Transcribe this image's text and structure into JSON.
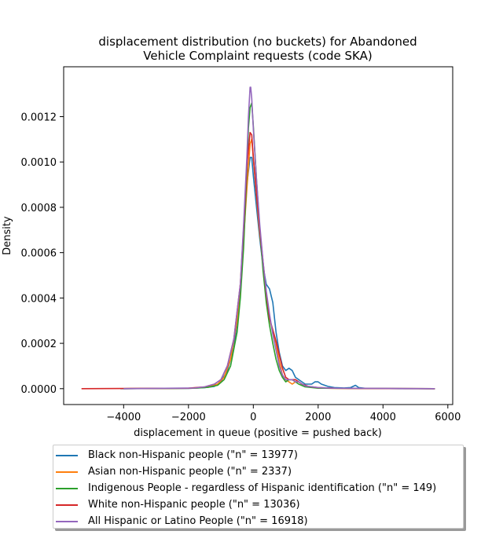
{
  "chart_data": {
    "type": "line",
    "title": "displacement distribution (no buckets)  for Abandoned\nVehicle Complaint requests (code SKA)",
    "xlabel": "displacement in queue (positive = pushed back)",
    "ylabel": "Density",
    "xlim": [
      -5850,
      6150
    ],
    "ylim": [
      -7e-05,
      0.00142
    ],
    "xticks": [
      -4000,
      -2000,
      0,
      2000,
      4000,
      6000
    ],
    "yticks": [
      0.0,
      0.0002,
      0.0004,
      0.0006,
      0.0008,
      0.001,
      0.0012
    ],
    "ytick_labels": [
      "0.0000",
      "0.0002",
      "0.0004",
      "0.0006",
      "0.0008",
      "0.0010",
      "0.0012"
    ],
    "legend_position": "below",
    "grid": false,
    "series": [
      {
        "name": "Black non-Hispanic people (\"n\" = 13977)",
        "color": "#1f77b4",
        "points": [
          [
            -4100,
            0
          ],
          [
            -2000,
            1e-06
          ],
          [
            -1500,
            5e-06
          ],
          [
            -1200,
            1e-05
          ],
          [
            -1000,
            3e-05
          ],
          [
            -800,
            8e-05
          ],
          [
            -600,
            0.00018
          ],
          [
            -400,
            0.00042
          ],
          [
            -300,
            0.0007
          ],
          [
            -200,
            0.0009
          ],
          [
            -100,
            0.00102
          ],
          [
            -50,
            0.00102
          ],
          [
            0,
            0.00094
          ],
          [
            100,
            0.0008
          ],
          [
            200,
            0.00066
          ],
          [
            300,
            0.00054
          ],
          [
            400,
            0.00046
          ],
          [
            500,
            0.00044
          ],
          [
            600,
            0.00038
          ],
          [
            700,
            0.00025
          ],
          [
            800,
            0.00016
          ],
          [
            900,
            0.0001
          ],
          [
            1000,
            8e-05
          ],
          [
            1100,
            9e-05
          ],
          [
            1200,
            8e-05
          ],
          [
            1300,
            5e-05
          ],
          [
            1400,
            4e-05
          ],
          [
            1500,
            3e-05
          ],
          [
            1600,
            2e-05
          ],
          [
            1800,
            2e-05
          ],
          [
            1900,
            3e-05
          ],
          [
            2000,
            3e-05
          ],
          [
            2100,
            2e-05
          ],
          [
            2300,
            1e-05
          ],
          [
            2500,
            5e-06
          ],
          [
            2800,
            3e-06
          ],
          [
            3000,
            5e-06
          ],
          [
            3150,
            1.5e-05
          ],
          [
            3250,
            5e-06
          ],
          [
            3500,
            1e-06
          ],
          [
            4500,
            0
          ],
          [
            5600,
            0
          ]
        ]
      },
      {
        "name": "Asian non-Hispanic people (\"n\" = 2337)",
        "color": "#ff7f0e",
        "points": [
          [
            -4000,
            0
          ],
          [
            -1800,
            2e-06
          ],
          [
            -1400,
            8e-06
          ],
          [
            -1100,
            2e-05
          ],
          [
            -900,
            5e-05
          ],
          [
            -700,
            0.00013
          ],
          [
            -500,
            0.0003
          ],
          [
            -400,
            0.00046
          ],
          [
            -300,
            0.00066
          ],
          [
            -200,
            0.00088
          ],
          [
            -100,
            0.00108
          ],
          [
            -50,
            0.0011
          ],
          [
            0,
            0.00102
          ],
          [
            100,
            0.00085
          ],
          [
            200,
            0.00068
          ],
          [
            300,
            0.00055
          ],
          [
            400,
            0.00042
          ],
          [
            500,
            0.00031
          ],
          [
            600,
            0.00025
          ],
          [
            700,
            0.0002
          ],
          [
            800,
            0.00012
          ],
          [
            900,
            6e-05
          ],
          [
            1000,
            4e-05
          ],
          [
            1100,
            3e-05
          ],
          [
            1200,
            2e-05
          ],
          [
            1300,
            3e-05
          ],
          [
            1400,
            3e-05
          ],
          [
            1500,
            2e-05
          ],
          [
            1700,
            8e-06
          ],
          [
            2000,
            3e-06
          ],
          [
            2500,
            1e-06
          ],
          [
            5600,
            0
          ]
        ]
      },
      {
        "name": "Indigenous People - regardless of Hispanic identification (\"n\" = 149)",
        "color": "#2ca02c",
        "points": [
          [
            -4000,
            0
          ],
          [
            -1800,
            2e-06
          ],
          [
            -1400,
            6e-06
          ],
          [
            -1100,
            1.5e-05
          ],
          [
            -900,
            4e-05
          ],
          [
            -700,
            0.0001
          ],
          [
            -500,
            0.00025
          ],
          [
            -400,
            0.0004
          ],
          [
            -300,
            0.00062
          ],
          [
            -200,
            0.00095
          ],
          [
            -150,
            0.00115
          ],
          [
            -100,
            0.00124
          ],
          [
            -50,
            0.00126
          ],
          [
            0,
            0.00116
          ],
          [
            100,
            0.00092
          ],
          [
            200,
            0.0007
          ],
          [
            300,
            0.00052
          ],
          [
            400,
            0.00038
          ],
          [
            500,
            0.00028
          ],
          [
            600,
            0.0002
          ],
          [
            700,
            0.00013
          ],
          [
            800,
            8e-05
          ],
          [
            900,
            5e-05
          ],
          [
            1000,
            3e-05
          ],
          [
            1100,
            4e-05
          ],
          [
            1200,
            4e-05
          ],
          [
            1300,
            3e-05
          ],
          [
            1400,
            2e-05
          ],
          [
            1600,
            8e-06
          ],
          [
            2000,
            2e-06
          ],
          [
            5600,
            0
          ]
        ]
      },
      {
        "name": "White non-Hispanic people (\"n\" = 13036)",
        "color": "#d62728",
        "points": [
          [
            -5300,
            0
          ],
          [
            -2000,
            2e-06
          ],
          [
            -1500,
            8e-06
          ],
          [
            -1200,
            2e-05
          ],
          [
            -1000,
            4e-05
          ],
          [
            -800,
            0.0001
          ],
          [
            -600,
            0.00022
          ],
          [
            -400,
            0.00046
          ],
          [
            -300,
            0.0007
          ],
          [
            -200,
            0.00098
          ],
          [
            -100,
            0.00113
          ],
          [
            -50,
            0.00112
          ],
          [
            0,
            0.00102
          ],
          [
            100,
            0.00086
          ],
          [
            200,
            0.0007
          ],
          [
            300,
            0.00056
          ],
          [
            400,
            0.00042
          ],
          [
            500,
            0.00031
          ],
          [
            600,
            0.00026
          ],
          [
            700,
            0.00021
          ],
          [
            800,
            0.00015
          ],
          [
            900,
            9e-05
          ],
          [
            1000,
            5e-05
          ],
          [
            1100,
            4e-05
          ],
          [
            1200,
            4e-05
          ],
          [
            1300,
            4e-05
          ],
          [
            1400,
            3e-05
          ],
          [
            1500,
            2e-05
          ],
          [
            1700,
            1e-05
          ],
          [
            2000,
            5e-06
          ],
          [
            2500,
            2e-06
          ],
          [
            3000,
            1e-06
          ],
          [
            5600,
            0
          ]
        ]
      },
      {
        "name": "All Hispanic or Latino People (\"n\" = 16918)",
        "color": "#9467bd",
        "points": [
          [
            -4000,
            0
          ],
          [
            -1800,
            3e-06
          ],
          [
            -1500,
            8e-06
          ],
          [
            -1200,
            2e-05
          ],
          [
            -1000,
            4e-05
          ],
          [
            -800,
            0.0001
          ],
          [
            -600,
            0.00022
          ],
          [
            -400,
            0.00046
          ],
          [
            -300,
            0.00072
          ],
          [
            -200,
            0.00102
          ],
          [
            -150,
            0.0012
          ],
          [
            -100,
            0.00133
          ],
          [
            -80,
            0.00133
          ],
          [
            -50,
            0.00128
          ],
          [
            0,
            0.00115
          ],
          [
            100,
            0.00092
          ],
          [
            200,
            0.00072
          ],
          [
            300,
            0.00056
          ],
          [
            400,
            0.00043
          ],
          [
            500,
            0.00033
          ],
          [
            600,
            0.00024
          ],
          [
            700,
            0.00017
          ],
          [
            800,
            0.0001
          ],
          [
            900,
            6e-05
          ],
          [
            1000,
            4e-05
          ],
          [
            1100,
            4e-05
          ],
          [
            1200,
            4e-05
          ],
          [
            1300,
            3e-05
          ],
          [
            1400,
            3e-05
          ],
          [
            1600,
            1.2e-05
          ],
          [
            2000,
            5e-06
          ],
          [
            2500,
            2e-06
          ],
          [
            5600,
            0
          ]
        ]
      }
    ]
  }
}
